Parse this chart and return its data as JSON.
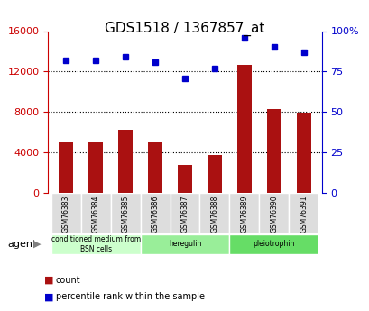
{
  "title": "GDS1518 / 1367857_at",
  "samples": [
    "GSM76383",
    "GSM76384",
    "GSM76385",
    "GSM76386",
    "GSM76387",
    "GSM76388",
    "GSM76389",
    "GSM76390",
    "GSM76391"
  ],
  "counts": [
    5100,
    5000,
    6200,
    5000,
    2800,
    3700,
    12700,
    8300,
    7900
  ],
  "percentiles": [
    82,
    82,
    84,
    81,
    71,
    77,
    96,
    90,
    87
  ],
  "groups": [
    {
      "label": "conditioned medium from\nBSN cells",
      "start": 0,
      "end": 3,
      "color": "#ccffcc"
    },
    {
      "label": "heregulin",
      "start": 3,
      "end": 6,
      "color": "#99ee99"
    },
    {
      "label": "pleiotrophin",
      "start": 6,
      "end": 9,
      "color": "#66dd66"
    }
  ],
  "bar_color": "#aa1111",
  "dot_color": "#0000cc",
  "left_axis_color": "#cc0000",
  "right_axis_color": "#0000cc",
  "ylim_left": [
    0,
    16000
  ],
  "ylim_right": [
    0,
    100
  ],
  "left_ticks": [
    0,
    4000,
    8000,
    12000,
    16000
  ],
  "right_ticks": [
    0,
    25,
    50,
    75,
    100
  ],
  "right_tick_labels": [
    "0",
    "25",
    "50",
    "75",
    "100%"
  ],
  "grid_values": [
    4000,
    8000,
    12000
  ],
  "background_color": "#ffffff",
  "tick_area_color": "#dddddd",
  "agent_label": "agent",
  "legend_items": [
    {
      "color": "#aa1111",
      "label": "count"
    },
    {
      "color": "#0000cc",
      "label": "percentile rank within the sample"
    }
  ]
}
